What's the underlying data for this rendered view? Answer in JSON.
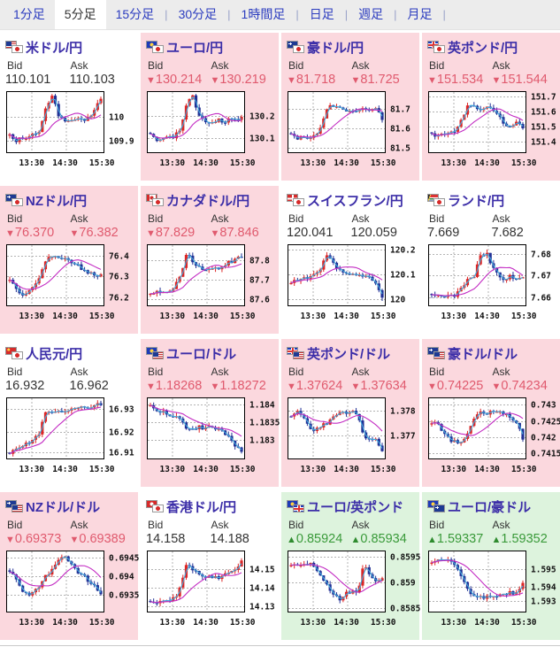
{
  "tabs": {
    "separator": "|",
    "items": [
      {
        "label": "1分足",
        "active": false,
        "sep": false
      },
      {
        "label": "5分足",
        "active": true,
        "sep": false
      },
      {
        "label": "15分足",
        "active": false,
        "sep": true
      },
      {
        "label": "30分足",
        "active": false,
        "sep": true
      },
      {
        "label": "1時間足",
        "active": false,
        "sep": true
      },
      {
        "label": "日足",
        "active": false,
        "sep": true
      },
      {
        "label": "週足",
        "active": false,
        "sep": true
      },
      {
        "label": "月足",
        "active": false,
        "sep": true
      }
    ]
  },
  "labels": {
    "bid": "Bid",
    "ask": "Ask"
  },
  "colors": {
    "down_bg": "#fbd8de",
    "up_bg": "#ddf3dd",
    "flat_bg": "#ffffff",
    "down_text": "#e05a6e",
    "up_text": "#3a9a3a",
    "flat_text": "#333333",
    "pair_name": "#3c2ea8",
    "tab_text": "#2b3cbf",
    "candle_up": "#dd2626",
    "candle_down": "#223095",
    "ma_fast": "#3fa9dc",
    "ma_slow": "#c32cc3"
  },
  "chart_common": {
    "type": "candlestick",
    "x_ticks": [
      "13:30",
      "14:30",
      "15:30"
    ]
  },
  "cells": [
    {
      "pair": "米ドル/円",
      "flags": [
        "us",
        "jp"
      ],
      "state": "flat",
      "arrow": "",
      "bid": "110.101",
      "ask": "110.103",
      "chart": {
        "y_ticks": [
          {
            "label": "110",
            "pos": 0.42
          },
          {
            "label": "109.9",
            "pos": 0.8
          }
        ],
        "shape": [
          0.3,
          0.18,
          0.22,
          0.25,
          0.28,
          0.35,
          0.8,
          0.95,
          0.62,
          0.55,
          0.5,
          0.58,
          0.52,
          0.6,
          0.72,
          0.9
        ]
      }
    },
    {
      "pair": "ユーロ/円",
      "flags": [
        "eu",
        "jp"
      ],
      "state": "down",
      "arrow": "▼",
      "bid": "130.214",
      "ask": "130.219",
      "chart": {
        "y_ticks": [
          {
            "label": "130.2",
            "pos": 0.4
          },
          {
            "label": "130.1",
            "pos": 0.76
          }
        ],
        "shape": [
          0.32,
          0.15,
          0.2,
          0.22,
          0.26,
          0.4,
          0.85,
          0.97,
          0.6,
          0.52,
          0.48,
          0.55,
          0.5,
          0.58,
          0.52,
          0.6
        ]
      }
    },
    {
      "pair": "豪ドル/円",
      "flags": [
        "au",
        "jp"
      ],
      "state": "down",
      "arrow": "▼",
      "bid": "81.718",
      "ask": "81.725",
      "chart": {
        "y_ticks": [
          {
            "label": "81.7",
            "pos": 0.28
          },
          {
            "label": "81.6",
            "pos": 0.6
          },
          {
            "label": "81.5",
            "pos": 0.92
          }
        ],
        "shape": [
          0.28,
          0.22,
          0.25,
          0.24,
          0.28,
          0.45,
          0.78,
          0.8,
          0.74,
          0.7,
          0.72,
          0.7,
          0.72,
          0.7,
          0.72,
          0.55
        ]
      }
    },
    {
      "pair": "英ポンド/円",
      "flags": [
        "gb",
        "jp"
      ],
      "state": "down",
      "arrow": "▼",
      "bid": "151.534",
      "ask": "151.544",
      "chart": {
        "y_ticks": [
          {
            "label": "151.7",
            "pos": 0.08
          },
          {
            "label": "151.6",
            "pos": 0.33
          },
          {
            "label": "151.5",
            "pos": 0.57
          },
          {
            "label": "151.4",
            "pos": 0.82
          }
        ],
        "shape": [
          0.3,
          0.25,
          0.28,
          0.3,
          0.35,
          0.55,
          0.82,
          0.78,
          0.72,
          0.75,
          0.7,
          0.62,
          0.45,
          0.4,
          0.52,
          0.42
        ]
      }
    },
    {
      "pair": "NZドル/円",
      "flags": [
        "nz",
        "jp"
      ],
      "state": "down",
      "arrow": "▼",
      "bid": "76.370",
      "ask": "76.382",
      "chart": {
        "y_ticks": [
          {
            "label": "76.4",
            "pos": 0.18
          },
          {
            "label": "76.3",
            "pos": 0.52
          },
          {
            "label": "76.2",
            "pos": 0.86
          }
        ],
        "shape": [
          0.4,
          0.28,
          0.15,
          0.2,
          0.3,
          0.5,
          0.78,
          0.82,
          0.8,
          0.82,
          0.75,
          0.68,
          0.6,
          0.55,
          0.52,
          0.5
        ]
      }
    },
    {
      "pair": "カナダドル/円",
      "flags": [
        "ca",
        "jp"
      ],
      "state": "down",
      "arrow": "▼",
      "bid": "87.829",
      "ask": "87.846",
      "chart": {
        "y_ticks": [
          {
            "label": "87.8",
            "pos": 0.25
          },
          {
            "label": "87.7",
            "pos": 0.57
          },
          {
            "label": "87.6",
            "pos": 0.88
          }
        ],
        "shape": [
          0.15,
          0.2,
          0.18,
          0.22,
          0.3,
          0.5,
          0.92,
          0.7,
          0.62,
          0.58,
          0.6,
          0.62,
          0.68,
          0.72,
          0.78,
          0.82
        ]
      }
    },
    {
      "pair": "スイスフラン/円",
      "flags": [
        "ch",
        "jp"
      ],
      "state": "flat",
      "arrow": "",
      "bid": "120.041",
      "ask": "120.059",
      "chart": {
        "y_ticks": [
          {
            "label": "120.2",
            "pos": 0.08
          },
          {
            "label": "120.1",
            "pos": 0.48
          },
          {
            "label": "120",
            "pos": 0.88
          }
        ],
        "shape": [
          0.35,
          0.42,
          0.48,
          0.45,
          0.55,
          0.65,
          0.88,
          0.7,
          0.58,
          0.52,
          0.5,
          0.52,
          0.5,
          0.48,
          0.35,
          0.08
        ]
      }
    },
    {
      "pair": "ランド/円",
      "flags": [
        "za",
        "jp"
      ],
      "state": "flat",
      "arrow": "",
      "bid": "7.669",
      "ask": "7.682",
      "chart": {
        "y_ticks": [
          {
            "label": "7.68",
            "pos": 0.15
          },
          {
            "label": "7.67",
            "pos": 0.5
          },
          {
            "label": "7.66",
            "pos": 0.86
          }
        ],
        "shape": [
          0.15,
          0.13,
          0.15,
          0.14,
          0.16,
          0.3,
          0.45,
          0.5,
          0.85,
          0.9,
          0.65,
          0.5,
          0.42,
          0.48,
          0.46,
          0.5
        ]
      }
    },
    {
      "pair": "人民元/円",
      "flags": [
        "cn",
        "jp"
      ],
      "state": "flat",
      "arrow": "",
      "bid": "16.932",
      "ask": "16.962",
      "chart": {
        "y_ticks": [
          {
            "label": "16.93",
            "pos": 0.18
          },
          {
            "label": "16.92",
            "pos": 0.55
          },
          {
            "label": "16.91",
            "pos": 0.88
          }
        ],
        "shape": [
          0.08,
          0.12,
          0.18,
          0.25,
          0.32,
          0.45,
          0.85,
          0.75,
          0.78,
          0.8,
          0.82,
          0.84,
          0.86,
          0.88,
          0.9,
          0.93
        ]
      }
    },
    {
      "pair": "ユーロ/ドル",
      "flags": [
        "eu",
        "us"
      ],
      "state": "down",
      "arrow": "▼",
      "bid": "1.18268",
      "ask": "1.18272",
      "chart": {
        "y_ticks": [
          {
            "label": "1.184",
            "pos": 0.12
          },
          {
            "label": "1.1835",
            "pos": 0.4
          },
          {
            "label": "1.183",
            "pos": 0.68
          }
        ],
        "shape": [
          0.9,
          0.82,
          0.78,
          0.75,
          0.72,
          0.68,
          0.5,
          0.48,
          0.52,
          0.48,
          0.52,
          0.5,
          0.45,
          0.35,
          0.2,
          0.08
        ]
      }
    },
    {
      "pair": "英ポンド/ドル",
      "flags": [
        "gb",
        "us"
      ],
      "state": "down",
      "arrow": "▼",
      "bid": "1.37624",
      "ask": "1.37634",
      "chart": {
        "y_ticks": [
          {
            "label": "1.378",
            "pos": 0.22
          },
          {
            "label": "1.377",
            "pos": 0.62
          }
        ],
        "shape": [
          0.72,
          0.78,
          0.7,
          0.52,
          0.48,
          0.55,
          0.58,
          0.72,
          0.8,
          0.78,
          0.8,
          0.75,
          0.3,
          0.35,
          0.28,
          0.12
        ]
      }
    },
    {
      "pair": "豪ドル/ドル",
      "flags": [
        "au",
        "us"
      ],
      "state": "down",
      "arrow": "▼",
      "bid": "0.74225",
      "ask": "0.74234",
      "chart": {
        "y_ticks": [
          {
            "label": "0.743",
            "pos": 0.12
          },
          {
            "label": "0.7425",
            "pos": 0.38
          },
          {
            "label": "0.742",
            "pos": 0.64
          },
          {
            "label": "0.7415",
            "pos": 0.9
          }
        ],
        "shape": [
          0.6,
          0.55,
          0.45,
          0.3,
          0.28,
          0.25,
          0.45,
          0.7,
          0.78,
          0.75,
          0.78,
          0.8,
          0.75,
          0.7,
          0.6,
          0.3
        ]
      }
    },
    {
      "pair": "NZドル/ドル",
      "flags": [
        "nz",
        "us"
      ],
      "state": "down",
      "arrow": "▼",
      "bid": "0.69373",
      "ask": "0.69389",
      "chart": {
        "y_ticks": [
          {
            "label": "0.6945",
            "pos": 0.12
          },
          {
            "label": "0.694",
            "pos": 0.42
          },
          {
            "label": "0.6935",
            "pos": 0.72
          }
        ],
        "shape": [
          0.68,
          0.55,
          0.35,
          0.25,
          0.3,
          0.45,
          0.6,
          0.7,
          0.88,
          0.92,
          0.8,
          0.7,
          0.6,
          0.5,
          0.42,
          0.3
        ]
      }
    },
    {
      "pair": "香港ドル/円",
      "flags": [
        "hk",
        "jp"
      ],
      "state": "flat",
      "arrow": "",
      "bid": "14.158",
      "ask": "14.188",
      "chart": {
        "y_ticks": [
          {
            "label": "14.15",
            "pos": 0.3
          },
          {
            "label": "14.14",
            "pos": 0.6
          },
          {
            "label": "14.13",
            "pos": 0.9
          }
        ],
        "shape": [
          0.15,
          0.12,
          0.15,
          0.18,
          0.22,
          0.4,
          0.8,
          0.72,
          0.6,
          0.55,
          0.58,
          0.55,
          0.6,
          0.65,
          0.72,
          0.85
        ]
      }
    },
    {
      "pair": "ユーロ/英ポンド",
      "flags": [
        "eu",
        "gb"
      ],
      "state": "up",
      "arrow": "▲",
      "bid": "0.85924",
      "ask": "0.85934",
      "chart": {
        "y_ticks": [
          {
            "label": "0.8595",
            "pos": 0.1
          },
          {
            "label": "0.859",
            "pos": 0.52
          },
          {
            "label": "0.8585",
            "pos": 0.93
          }
        ],
        "shape": [
          0.78,
          0.8,
          0.82,
          0.8,
          0.75,
          0.6,
          0.4,
          0.25,
          0.2,
          0.28,
          0.35,
          0.3,
          0.85,
          0.6,
          0.5,
          0.55
        ]
      }
    },
    {
      "pair": "ユーロ/豪ドル",
      "flags": [
        "eu",
        "au"
      ],
      "state": "up",
      "arrow": "▲",
      "bid": "1.59337",
      "ask": "1.59352",
      "chart": {
        "y_ticks": [
          {
            "label": "1.595",
            "pos": 0.3
          },
          {
            "label": "1.594",
            "pos": 0.58
          },
          {
            "label": "1.593",
            "pos": 0.82
          }
        ],
        "shape": [
          0.8,
          0.88,
          0.92,
          0.85,
          0.75,
          0.55,
          0.35,
          0.25,
          0.22,
          0.25,
          0.22,
          0.25,
          0.28,
          0.3,
          0.32,
          0.48
        ]
      }
    }
  ]
}
